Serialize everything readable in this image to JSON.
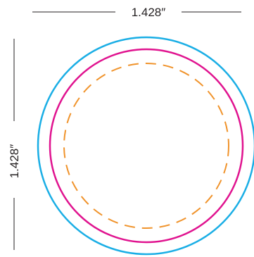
{
  "dimensions": {
    "width_label": "1.428″",
    "height_label": "1.428″"
  },
  "colors": {
    "bleed": "#1aaee5",
    "trim": "#e0138f",
    "safe": "#f0932b",
    "dimension_line": "#231f20",
    "background": "#ffffff"
  }
}
